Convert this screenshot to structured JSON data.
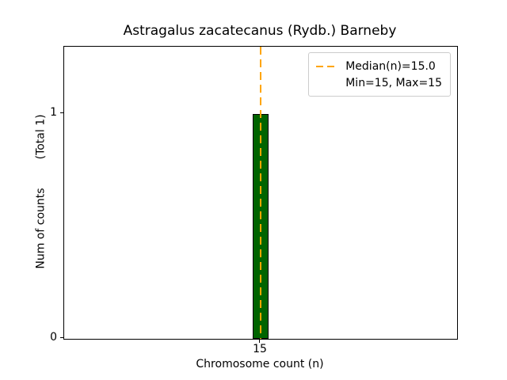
{
  "chart_data": {
    "type": "bar",
    "title": "Astragalus zacatecanus (Rydb.) Barneby",
    "xlabel": "Chromosome count (n)",
    "ylabel": "Num of counts",
    "ylabel_total": "(Total 1)",
    "categories": [
      15
    ],
    "values": [
      1
    ],
    "ylim": [
      0,
      1.3
    ],
    "yticks": [
      {
        "value": 0,
        "label": "0"
      },
      {
        "value": 1,
        "label": "1"
      }
    ],
    "xticks": [
      {
        "frac": 0.5,
        "label": "15"
      }
    ],
    "median": 15.0,
    "min": 15,
    "max": 15,
    "legend": [
      "Median(n)=15.0",
      "Min=15, Max=15"
    ],
    "legend_position": "upper right",
    "grid": false,
    "colors": {
      "bar": "#006400",
      "bar_edge": "#000000",
      "median_line": "#FFA500",
      "legend_border": "#cccccc"
    }
  }
}
